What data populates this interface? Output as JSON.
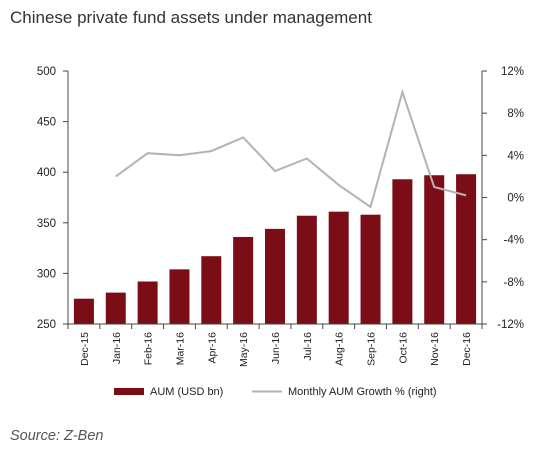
{
  "title": "Chinese private fund assets under management",
  "source": "Source: Z-Ben",
  "colors": {
    "bar": "#7a0d16",
    "line": "#b3b3b3",
    "axis": "#444444"
  },
  "chart_data": {
    "type": "bar",
    "categories": [
      "Dec-15",
      "Jan-16",
      "Feb-16",
      "Mar-16",
      "Apr-16",
      "May-16",
      "Jun-16",
      "Jul-16",
      "Aug-16",
      "Sep-16",
      "Oct-16",
      "Nov-16",
      "Dec-16"
    ],
    "series": [
      {
        "name": "AUM (USD bn)",
        "type": "bar",
        "axis": "left",
        "values": [
          275,
          281,
          292,
          304,
          317,
          336,
          344,
          357,
          361,
          358,
          393,
          397,
          398
        ]
      },
      {
        "name": "Monthly AUM Growth % (right)",
        "type": "line",
        "axis": "right",
        "values": [
          null,
          2.0,
          4.2,
          4.0,
          4.4,
          5.7,
          2.5,
          3.7,
          1.2,
          -0.9,
          10.0,
          1.0,
          0.2
        ]
      }
    ],
    "left_axis": {
      "min": 250,
      "max": 500,
      "ticks": [
        250,
        300,
        350,
        400,
        450,
        500
      ]
    },
    "right_axis": {
      "min": -12,
      "max": 12,
      "ticks": [
        -12,
        -8,
        -4,
        0,
        4,
        8,
        12
      ],
      "tick_labels": [
        "-12%",
        "-8%",
        "-4%",
        "0%",
        "4%",
        "8%",
        "12%"
      ]
    },
    "grid": false,
    "legend_position": "bottom"
  }
}
